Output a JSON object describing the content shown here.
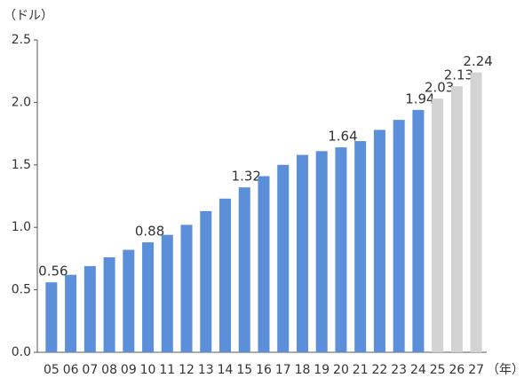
{
  "chart_data": {
    "type": "bar",
    "y_unit": "（ドル）",
    "x_unit": "（年）",
    "categories": [
      "05",
      "06",
      "07",
      "08",
      "09",
      "10",
      "11",
      "12",
      "13",
      "14",
      "15",
      "16",
      "17",
      "18",
      "19",
      "20",
      "21",
      "22",
      "23",
      "24",
      "25",
      "26",
      "27"
    ],
    "values": [
      0.56,
      0.62,
      0.69,
      0.76,
      0.82,
      0.88,
      0.94,
      1.02,
      1.13,
      1.23,
      1.32,
      1.41,
      1.5,
      1.58,
      1.61,
      1.64,
      1.69,
      1.78,
      1.86,
      1.94,
      2.03,
      2.13,
      2.24
    ],
    "value_labels": [
      "0.56",
      null,
      null,
      null,
      null,
      "0.88",
      null,
      null,
      null,
      null,
      "1.32",
      null,
      null,
      null,
      null,
      "1.64",
      null,
      null,
      null,
      "1.94",
      "2.03",
      "2.13",
      "2.24"
    ],
    "colors": [
      "#5b8fd9",
      "#5b8fd9",
      "#5b8fd9",
      "#5b8fd9",
      "#5b8fd9",
      "#5b8fd9",
      "#5b8fd9",
      "#5b8fd9",
      "#5b8fd9",
      "#5b8fd9",
      "#5b8fd9",
      "#5b8fd9",
      "#5b8fd9",
      "#5b8fd9",
      "#5b8fd9",
      "#5b8fd9",
      "#5b8fd9",
      "#5b8fd9",
      "#5b8fd9",
      "#5b8fd9",
      "#d3d3d3",
      "#d3d3d3",
      "#d3d3d3"
    ],
    "ylim": [
      0,
      2.5
    ],
    "yticks": [
      {
        "value": 0,
        "label": "0.0"
      },
      0.5,
      {
        "value": 1,
        "label": "1.0"
      },
      1.5,
      {
        "value": 2,
        "label": "2.0"
      },
      2.5
    ],
    "grid": false
  }
}
